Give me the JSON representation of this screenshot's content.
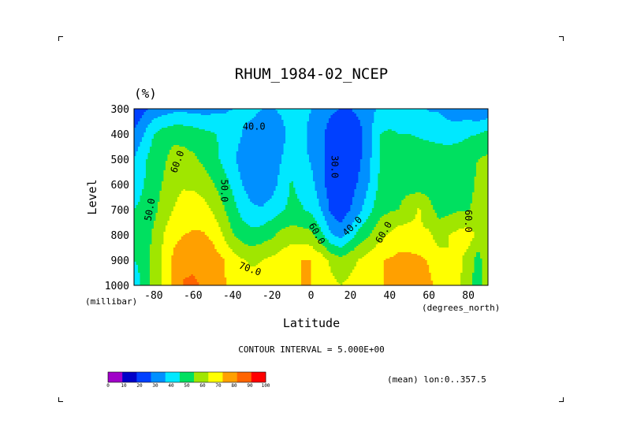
{
  "chart_data": {
    "type": "heatmap",
    "title": "RHUM_1984-02_NCEP",
    "unit_label": "(%)",
    "xlabel": "Latitude",
    "ylabel": "Level",
    "x_units": "(degrees_north)",
    "y_units": "(millibar)",
    "xlim": [
      -90,
      90
    ],
    "ylim": [
      1000,
      300
    ],
    "x_ticks": [
      -80,
      -60,
      -40,
      -20,
      0,
      20,
      40,
      60,
      80
    ],
    "x_tick_labels": [
      "-80",
      "-60",
      "-40",
      "-20",
      "0",
      "20",
      "40",
      "60",
      "80"
    ],
    "y_ticks": [
      300,
      400,
      500,
      600,
      700,
      800,
      900,
      1000
    ],
    "y_tick_labels": [
      "300",
      "400",
      "500",
      "600",
      "700",
      "800",
      "900",
      "1000"
    ],
    "contour_interval_text": "CONTOUR INTERVAL = 5.000E+00",
    "mean_text": "(mean) lon:0..357.5",
    "contour_labels": [
      {
        "text": "40.0",
        "x": -29,
        "y": 370,
        "rot": 0
      },
      {
        "text": "30.0",
        "x": 12,
        "y": 530,
        "rot": 90
      },
      {
        "text": "40.0",
        "x": 21,
        "y": 765,
        "rot": -45
      },
      {
        "text": "50.0",
        "x": -44,
        "y": 625,
        "rot": 90
      },
      {
        "text": "60.0",
        "x": -68,
        "y": 510,
        "rot": -70
      },
      {
        "text": "50.0",
        "x": -82,
        "y": 700,
        "rot": -80
      },
      {
        "text": "60.0",
        "x": 3,
        "y": 795,
        "rot": 60
      },
      {
        "text": "60.0",
        "x": 37,
        "y": 790,
        "rot": -60
      },
      {
        "text": "60.0",
        "x": 80,
        "y": 745,
        "rot": 90
      },
      {
        "text": "70.0",
        "x": -31,
        "y": 935,
        "rot": 20
      }
    ],
    "colorbar": {
      "ticks": [
        "0",
        "10",
        "20",
        "30",
        "40",
        "50",
        "60",
        "70",
        "80",
        "90",
        "100"
      ],
      "colors": [
        "#a000c8",
        "#0000c8",
        "#0040ff",
        "#0090ff",
        "#00e8ff",
        "#00e060",
        "#a0e600",
        "#ffff00",
        "#ffa000",
        "#ff6400",
        "#ff0000"
      ]
    },
    "levels": [
      300,
      400,
      500,
      600,
      700,
      800,
      900,
      1000
    ],
    "lats": [
      -90,
      -85,
      -80,
      -75,
      -70,
      -65,
      -60,
      -55,
      -50,
      -45,
      -40,
      -35,
      -30,
      -25,
      -20,
      -15,
      -10,
      -5,
      0,
      5,
      10,
      15,
      20,
      25,
      30,
      35,
      40,
      45,
      50,
      55,
      60,
      65,
      70,
      75,
      80,
      85,
      90
    ],
    "values": [
      [
        20,
        28,
        33,
        35,
        37,
        37,
        37,
        36,
        37,
        38,
        40,
        42,
        43,
        40,
        39,
        42,
        45,
        43,
        40,
        36,
        32,
        30,
        30,
        32,
        38,
        41,
        41,
        40,
        41,
        42,
        39,
        39,
        35,
        33,
        33,
        30,
        32
      ],
      [
        32,
        40,
        50,
        55,
        57,
        57,
        55,
        53,
        51,
        48,
        45,
        40,
        36,
        33,
        32,
        36,
        45,
        42,
        38,
        33,
        25,
        20,
        23,
        28,
        37,
        50,
        52,
        50,
        50,
        49,
        48,
        47,
        46,
        47,
        49,
        50,
        53
      ],
      [
        40,
        48,
        55,
        58,
        64,
        63,
        62,
        58,
        54,
        48,
        42,
        36,
        32,
        30,
        33,
        40,
        47,
        43,
        39,
        33,
        24,
        20,
        24,
        29,
        39,
        50,
        55,
        55,
        55,
        55,
        55,
        55,
        55,
        56,
        56,
        60,
        62
      ],
      [
        46,
        50,
        55,
        61,
        67,
        69,
        68,
        66,
        61,
        55,
        48,
        40,
        34,
        32,
        35,
        44,
        51,
        47,
        43,
        34,
        25,
        21,
        26,
        32,
        41,
        52,
        57,
        57,
        56,
        55,
        56,
        55,
        55,
        56,
        55,
        63,
        65
      ],
      [
        50,
        52,
        57,
        65,
        70,
        74,
        76,
        74,
        69,
        62,
        54,
        47,
        42,
        41,
        45,
        49,
        52,
        51,
        48,
        40,
        28,
        23,
        30,
        38,
        48,
        56,
        59,
        60,
        66,
        71,
        63,
        57,
        57,
        59,
        59,
        65,
        67
      ],
      [
        52,
        53,
        62,
        70,
        77,
        80,
        81,
        81,
        78,
        70,
        61,
        55,
        53,
        55,
        58,
        63,
        65,
        64,
        63,
        53,
        41,
        36,
        45,
        55,
        60,
        67,
        71,
        76,
        74,
        71,
        72,
        65,
        70,
        73,
        75,
        67,
        69
      ],
      [
        50,
        55,
        64,
        72,
        82,
        86,
        86,
        86,
        85,
        81,
        75,
        71,
        68,
        70,
        72,
        75,
        78,
        80,
        80,
        76,
        68,
        63,
        67,
        71,
        75,
        79,
        81,
        82,
        83,
        82,
        79,
        75,
        70,
        72,
        66,
        55,
        70
      ],
      [
        40,
        55,
        65,
        72,
        82,
        91,
        93,
        88,
        83,
        81,
        79,
        78,
        75,
        74,
        73,
        75,
        77,
        80,
        80,
        77,
        73,
        70,
        72,
        75,
        77,
        79,
        81,
        83,
        86,
        87,
        82,
        77,
        70,
        71,
        67,
        52,
        70
      ]
    ]
  }
}
